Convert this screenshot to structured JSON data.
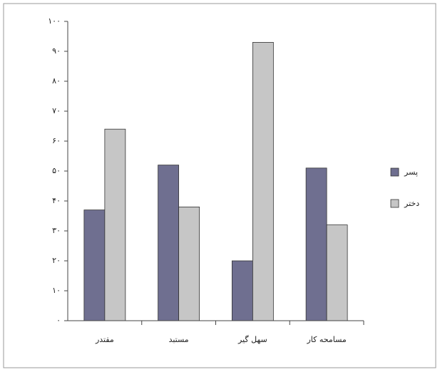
{
  "chart_data": {
    "type": "bar",
    "categories": [
      "مقتدر",
      "مستبد",
      "سهل گیر",
      "مسامحه کار"
    ],
    "series": [
      {
        "name": "پسر",
        "color": "#6f6f90",
        "values": [
          37,
          52,
          20,
          51
        ]
      },
      {
        "name": "دختر",
        "color": "#c6c6c6",
        "values": [
          64,
          38,
          93,
          32
        ]
      }
    ],
    "ylim": [
      0,
      100
    ],
    "yticks": [
      {
        "value": 0,
        "label": "۰"
      },
      {
        "value": 10,
        "label": "۱۰"
      },
      {
        "value": 20,
        "label": "۲۰"
      },
      {
        "value": 30,
        "label": "۳۰"
      },
      {
        "value": 40,
        "label": "۴۰"
      },
      {
        "value": 50,
        "label": "۵۰"
      },
      {
        "value": 60,
        "label": "۶۰"
      },
      {
        "value": 70,
        "label": "۷۰"
      },
      {
        "value": 80,
        "label": "۸۰"
      },
      {
        "value": 90,
        "label": "۹۰"
      },
      {
        "value": 100,
        "label": "۱۰۰"
      }
    ],
    "legend": "right"
  }
}
